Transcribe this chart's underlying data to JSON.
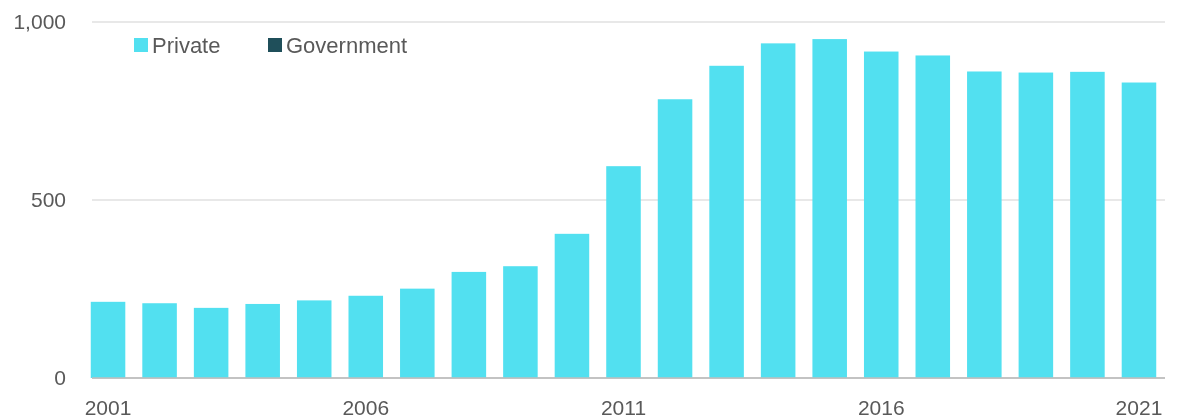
{
  "chart_data": {
    "type": "bar",
    "stacked": true,
    "categories": [
      "2001",
      null,
      null,
      null,
      null,
      "2006",
      null,
      null,
      null,
      null,
      "2011",
      null,
      null,
      null,
      null,
      "2016",
      null,
      null,
      null,
      null,
      "2021"
    ],
    "series": [
      {
        "name": "Private",
        "color": "#52e0f0",
        "values": [
          214,
          210,
          197,
          208,
          218,
          231,
          251,
          298,
          314,
          405,
          595,
          783,
          877,
          940,
          952,
          917,
          906,
          861,
          858,
          860,
          830
        ]
      },
      {
        "name": "Government",
        "color": "#1f4f5a",
        "values": [
          0,
          0,
          0,
          0,
          0,
          0,
          0,
          0,
          0,
          0,
          0,
          0,
          0,
          0,
          0,
          0,
          0,
          0,
          0,
          0,
          0
        ]
      }
    ],
    "ylim": [
      0,
      1000
    ],
    "yticks": [
      0,
      500,
      {
        "value": 1000,
        "label": "1,000"
      }
    ],
    "grid": "y",
    "legend": "top left"
  }
}
